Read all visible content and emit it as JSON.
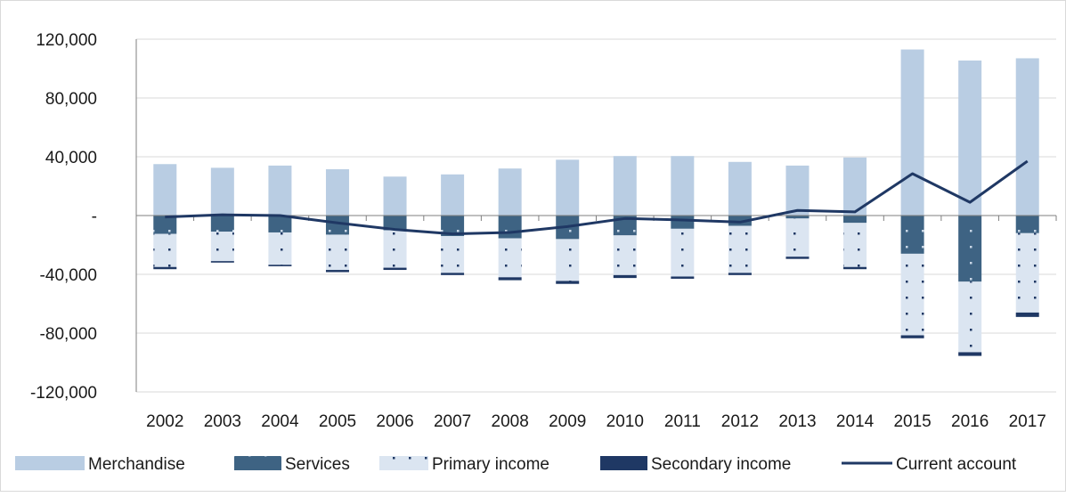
{
  "chart_data": {
    "type": "bar",
    "title": "",
    "xlabel": "",
    "ylabel": "",
    "categories": [
      "2002",
      "2003",
      "2004",
      "2005",
      "2006",
      "2007",
      "2008",
      "2009",
      "2010",
      "2011",
      "2012",
      "2013",
      "2014",
      "2015",
      "2016",
      "2017"
    ],
    "ylim": [
      -120000,
      120000
    ],
    "y_ticks": [
      120000,
      80000,
      40000,
      0,
      -40000,
      -80000,
      -120000
    ],
    "y_tick_labels": [
      "120,000",
      "80,000",
      "40,000",
      "-",
      "-40,000",
      "-80,000",
      "-120,000"
    ],
    "grid": true,
    "legend_position": "bottom",
    "stacked": true,
    "series": [
      {
        "name": "Merchandise",
        "kind": "bar",
        "color": "#b9cde3",
        "pattern": "solid",
        "values": [
          35000,
          32500,
          34000,
          31500,
          26500,
          28000,
          32000,
          38000,
          40500,
          40500,
          36500,
          34000,
          39500,
          113000,
          105500,
          107000
        ]
      },
      {
        "name": "Services",
        "kind": "bar",
        "color": "#3e6383",
        "pattern": "dots-light",
        "values": [
          -12500,
          -11000,
          -11500,
          -13000,
          -10000,
          -14000,
          -15500,
          -16000,
          -13500,
          -9000,
          -7000,
          -2000,
          -5000,
          -26000,
          -45000,
          -12000
        ]
      },
      {
        "name": "Primary income",
        "kind": "bar",
        "color": "#dbe5f1",
        "pattern": "dots-dark",
        "values": [
          -22500,
          -20000,
          -22000,
          -24000,
          -25500,
          -25000,
          -26500,
          -28500,
          -27000,
          -32500,
          -32000,
          -26000,
          -30000,
          -55500,
          -48000,
          -54000
        ]
      },
      {
        "name": "Secondary income",
        "kind": "bar",
        "color": "#1f3864",
        "pattern": "solid",
        "values": [
          -1500,
          -1000,
          -1000,
          -1500,
          -1500,
          -1500,
          -2000,
          -2000,
          -2000,
          -1500,
          -1500,
          -1500,
          -1500,
          -2000,
          -2500,
          -3000
        ]
      },
      {
        "name": "Current account",
        "kind": "line",
        "color": "#1f3864",
        "values": [
          -1000,
          500,
          0,
          -5000,
          -9500,
          -12500,
          -11500,
          -7500,
          -2000,
          -3000,
          -4500,
          3500,
          2500,
          28500,
          9000,
          37000
        ]
      }
    ]
  }
}
